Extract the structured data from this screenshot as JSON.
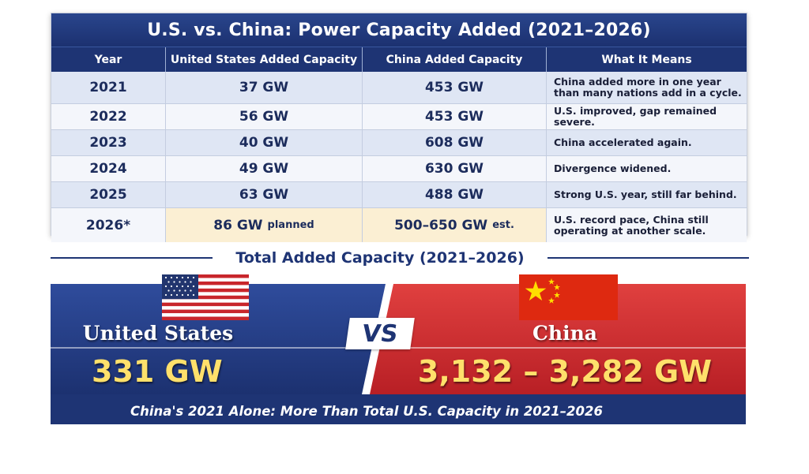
{
  "chart_data": {
    "type": "table",
    "title": "U.S. vs. China: Power Capacity Added (2021–2026)",
    "columns": [
      "Year",
      "United States Added Capacity",
      "China Added Capacity",
      "What It Means"
    ],
    "rows": [
      {
        "year": "2021",
        "us": "37 GW",
        "us_note": "",
        "china": "453 GW",
        "china_note": "",
        "meaning": "China added more in one year than many nations add in a cycle.",
        "highlight": false
      },
      {
        "year": "2022",
        "us": "56 GW",
        "us_note": "",
        "china": "453 GW",
        "china_note": "",
        "meaning": "U.S. improved, gap remained severe.",
        "highlight": false
      },
      {
        "year": "2023",
        "us": "40 GW",
        "us_note": "",
        "china": "608 GW",
        "china_note": "",
        "meaning": "China accelerated again.",
        "highlight": false
      },
      {
        "year": "2024",
        "us": "49 GW",
        "us_note": "",
        "china": "630 GW",
        "china_note": "",
        "meaning": "Divergence widened.",
        "highlight": false
      },
      {
        "year": "2025",
        "us": "63 GW",
        "us_note": "",
        "china": "488 GW",
        "china_note": "",
        "meaning": "Strong U.S. year, still far behind.",
        "highlight": false
      },
      {
        "year": "2026*",
        "us": "86 GW",
        "us_note": "planned",
        "china": "500–650 GW",
        "china_note": "est.",
        "meaning": "U.S. record pace, China still operating at another scale.",
        "highlight": true
      }
    ],
    "values_gw": {
      "us": [
        37,
        56,
        40,
        49,
        63,
        86
      ],
      "china": [
        453,
        453,
        608,
        630,
        488,
        [
          500,
          650
        ]
      ]
    }
  },
  "summary": {
    "heading": "Total Added Capacity (2021–2026)",
    "us_name": "United States",
    "us_total": "331 GW",
    "vs": "VS",
    "china_name": "China",
    "china_total": "3,132 – 3,282 GW",
    "footer": "China's 2021 Alone: More Than Total U.S. Capacity in 2021–2026"
  },
  "colors": {
    "navy": "#1e3474",
    "red": "#c8262b",
    "gold": "#ffe06b",
    "highlight": "#fbefd3"
  },
  "icons": [
    "us-flag-icon",
    "china-flag-icon"
  ]
}
